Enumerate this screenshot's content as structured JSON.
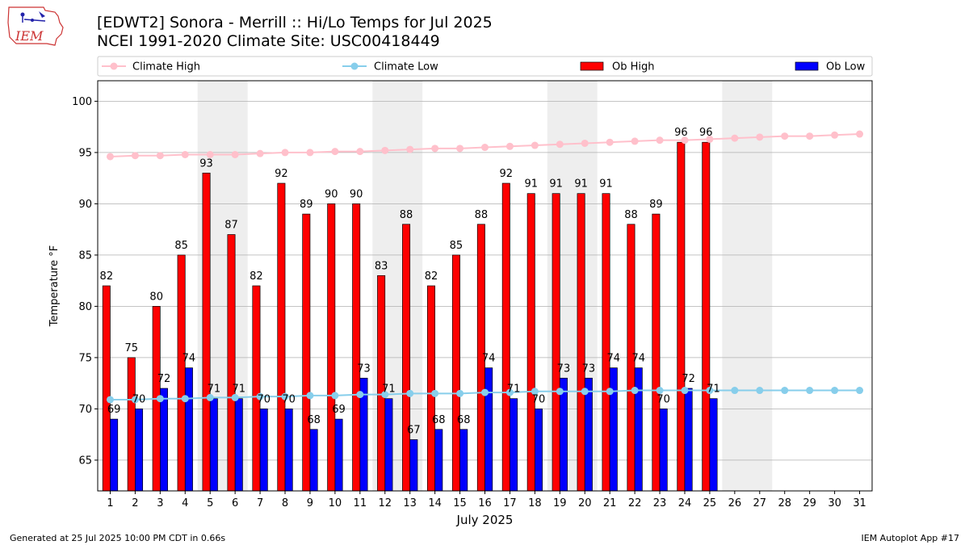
{
  "header": {
    "title_line1": "[EDWT2] Sonora - Merrill :: Hi/Lo Temps for Jul 2025",
    "title_line2": "NCEI 1991-2020 Climate Site: USC00418449",
    "logo_text": "IEM"
  },
  "footer": {
    "generated": "Generated at 25 Jul 2025 10:00 PM CDT in 0.66s",
    "app": "IEM Autoplot App #17"
  },
  "colors": {
    "climate_high": "#FFC0CB",
    "climate_low": "#87CEEB",
    "ob_high": "#FF0000",
    "ob_low": "#0000FF",
    "weekend_shade": "#EEEEEE",
    "grid": "#B0B0B0"
  },
  "chart_data": {
    "type": "bar",
    "xlabel": "July 2025",
    "ylabel": "Temperature °F",
    "ylim": [
      62,
      102
    ],
    "yticks": [
      65,
      70,
      75,
      80,
      85,
      90,
      95,
      100
    ],
    "xlim": [
      0.5,
      31.5
    ],
    "days": [
      1,
      2,
      3,
      4,
      5,
      6,
      7,
      8,
      9,
      10,
      11,
      12,
      13,
      14,
      15,
      16,
      17,
      18,
      19,
      20,
      21,
      22,
      23,
      24,
      25,
      26,
      27,
      28,
      29,
      30,
      31
    ],
    "weekend_spans": [
      [
        5,
        6
      ],
      [
        12,
        13
      ],
      [
        19,
        20
      ],
      [
        26,
        27
      ]
    ],
    "grid": "horizontal",
    "legend_position": "top",
    "series": [
      {
        "name": "Climate High",
        "type": "line",
        "values": [
          94.6,
          94.7,
          94.7,
          94.8,
          94.8,
          94.8,
          94.9,
          95.0,
          95.0,
          95.1,
          95.1,
          95.2,
          95.3,
          95.4,
          95.4,
          95.5,
          95.6,
          95.7,
          95.8,
          95.9,
          96.0,
          96.1,
          96.2,
          96.2,
          96.3,
          96.4,
          96.5,
          96.6,
          96.6,
          96.7,
          96.8
        ]
      },
      {
        "name": "Climate Low",
        "type": "line",
        "values": [
          70.9,
          70.9,
          71.0,
          71.0,
          71.1,
          71.1,
          71.2,
          71.2,
          71.3,
          71.3,
          71.4,
          71.4,
          71.5,
          71.5,
          71.5,
          71.6,
          71.6,
          71.7,
          71.7,
          71.7,
          71.7,
          71.8,
          71.8,
          71.8,
          71.8,
          71.8,
          71.8,
          71.8,
          71.8,
          71.8,
          71.8
        ]
      },
      {
        "name": "Ob High",
        "type": "bar",
        "values": [
          82,
          75,
          80,
          85,
          93,
          87,
          82,
          92,
          89,
          90,
          90,
          83,
          88,
          82,
          85,
          88,
          92,
          91,
          91,
          91,
          91,
          88,
          89,
          96,
          96
        ]
      },
      {
        "name": "Ob Low",
        "type": "bar",
        "values": [
          69,
          70,
          72,
          74,
          71,
          71,
          70,
          70,
          68,
          69,
          73,
          71,
          67,
          68,
          68,
          74,
          71,
          70,
          73,
          73,
          74,
          74,
          70,
          72,
          71
        ]
      }
    ]
  }
}
